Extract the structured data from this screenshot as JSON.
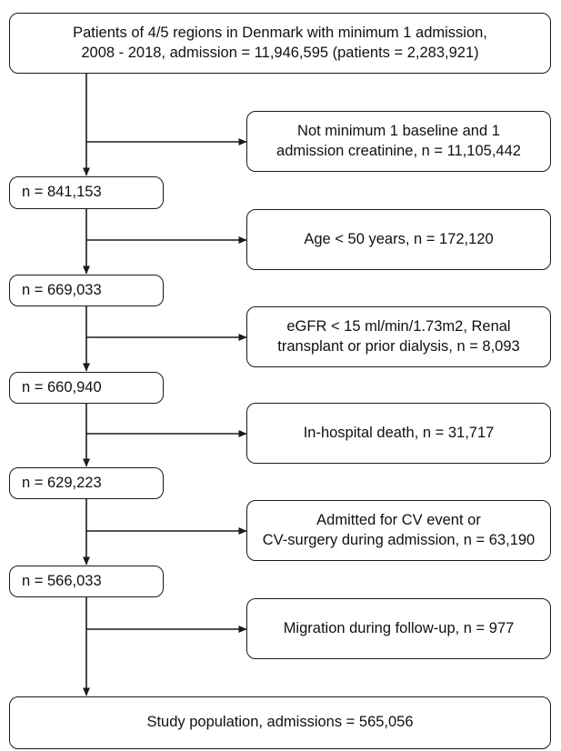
{
  "flowchart": {
    "top_box": "Patients of 4/5 regions in Denmark with minimum 1 admission,\n2008 - 2018, admission = 11,946,595 (patients = 2,283,921)",
    "steps": [
      {
        "count": "n = 841,153",
        "exclusion": "Not minimum 1 baseline and 1\nadmission creatinine, n = 11,105,442"
      },
      {
        "count": "n = 669,033",
        "exclusion": "Age < 50 years, n = 172,120"
      },
      {
        "count": "n = 660,940",
        "exclusion": "eGFR < 15 ml/min/1.73m2, Renal\ntransplant or prior dialysis, n = 8,093"
      },
      {
        "count": "n = 629,223",
        "exclusion": "In-hospital death, n = 31,717"
      },
      {
        "count": "n = 566,033",
        "exclusion": "Admitted for CV event or\nCV-surgery during admission, n = 63,190"
      },
      {
        "count": "",
        "exclusion": "Migration during follow-up, n = 977"
      }
    ],
    "final_box": "Study population, admissions = 565,056"
  }
}
